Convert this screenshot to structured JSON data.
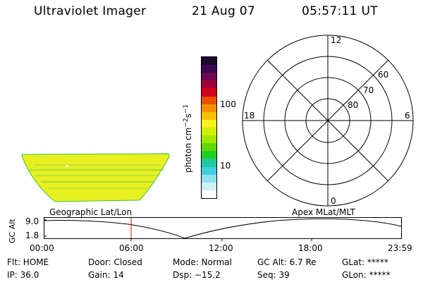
{
  "header": {
    "instrument": "Ultraviolet Imager",
    "date": "21 Aug 07",
    "time": "05:57:11 UT"
  },
  "colorbar": {
    "unit_label": "photon cm",
    "unit_exp1": "−2",
    "unit_s": "s",
    "unit_exp2": "−1",
    "tick_high": "100",
    "tick_low": "10",
    "colors": [
      "#1a0a2a",
      "#3a0a50",
      "#6a0a50",
      "#a0003a",
      "#d0001a",
      "#e85000",
      "#f09000",
      "#f8c000",
      "#f8f020",
      "#d0f000",
      "#a0e800",
      "#60d800",
      "#20d020",
      "#20c8a0",
      "#40d0e0",
      "#90e0f0",
      "#d0f0f8",
      "#ffffff"
    ]
  },
  "polar": {
    "mlt_top": "12",
    "mlt_bottom": "0",
    "mlt_left": "18",
    "mlt_right": "6",
    "lat_60": "60",
    "lat_70": "70",
    "lat_80": "80"
  },
  "timeline": {
    "left_title": "Geographic Lat/Lon",
    "right_title": "Apex MLat/MLT",
    "axis_label": "GC Alt",
    "y_high": "9.0",
    "y_low": "1.8",
    "time_ticks": [
      "00:00",
      "06:00",
      "12:00",
      "18:00",
      "23:59"
    ],
    "marker_color": "#e00000"
  },
  "status": {
    "flt": "Flt: HOME",
    "ip": "IP: 36.0",
    "door": "Door: Closed",
    "gain": "Gain: 14",
    "mode": "Mode: Normal",
    "dsp": "Dsp:  −15.2",
    "gcalt": "GC Alt: 6.7 Re",
    "seq": "Seq: 39",
    "glat": "GLat: *****",
    "glon": "GLon: *****"
  }
}
